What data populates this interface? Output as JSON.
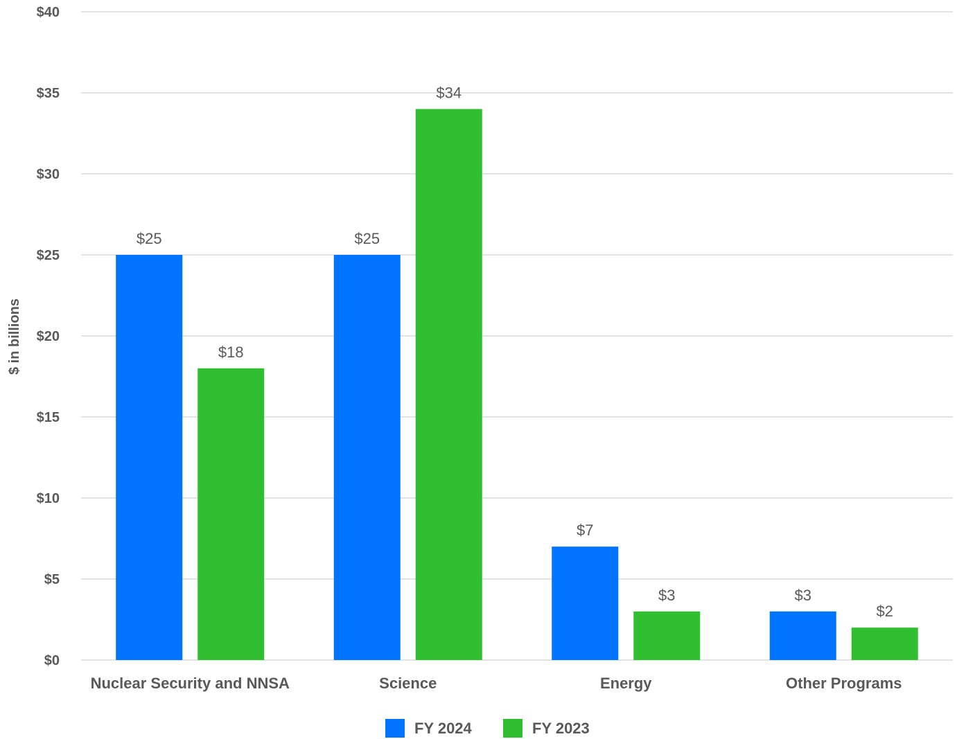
{
  "chart_data": {
    "type": "bar",
    "title": "",
    "xlabel": "",
    "ylabel": "$ in billions",
    "ylim": [
      0,
      40
    ],
    "yticks": [
      "$0",
      "$5",
      "$10",
      "$15",
      "$20",
      "$25",
      "$30",
      "$35",
      "$40"
    ],
    "ytick_values": [
      0,
      5,
      10,
      15,
      20,
      25,
      30,
      35,
      40
    ],
    "categories": [
      "Nuclear Security and NNSA",
      "Science",
      "Energy",
      "Other Programs"
    ],
    "series": [
      {
        "name": "FY 2024",
        "color": "#0073FF",
        "values": [
          25,
          25,
          7,
          3
        ],
        "labels": [
          "$25",
          "$25",
          "$7",
          "$3"
        ]
      },
      {
        "name": "FY 2023",
        "color": "#30BF30",
        "values": [
          18,
          34,
          3,
          2
        ],
        "labels": [
          "$18",
          "$34",
          "$3",
          "$2"
        ]
      }
    ],
    "grid": true,
    "legend_position": "bottom-center"
  }
}
